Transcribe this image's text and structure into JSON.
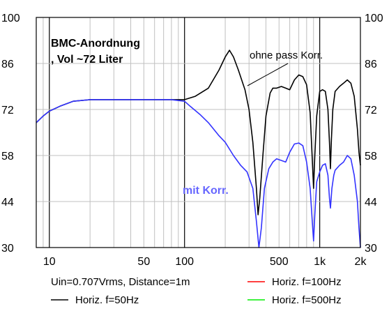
{
  "chart_data": {
    "type": "line",
    "title_lines": [
      "BMC-Anordnung",
      ", Vol ~72 Liter"
    ],
    "x_scale": "log",
    "xlim": [
      8,
      2000
    ],
    "ylim": [
      30,
      100
    ],
    "x_ticks": [
      {
        "value": 10,
        "label": "10"
      },
      {
        "value": 50,
        "label": "50"
      },
      {
        "value": 100,
        "label": "100"
      },
      {
        "value": 500,
        "label": "500"
      },
      {
        "value": 1000,
        "label": "1k"
      },
      {
        "value": 2000,
        "label": "2k"
      }
    ],
    "y_ticks": [
      {
        "value": 100,
        "label": "100"
      },
      {
        "value": 86,
        "label": "86"
      },
      {
        "value": 72,
        "label": "72"
      },
      {
        "value": 58,
        "label": "58"
      },
      {
        "value": 44,
        "label": "44"
      },
      {
        "value": 30,
        "label": "30"
      }
    ],
    "grid": true,
    "annotations": {
      "without": "ohne pass Korr.",
      "with": "mit Korr."
    },
    "info_text": "Uin=0.707Vrms, Distance=1m",
    "legend": [
      {
        "label": "Horiz. f=100Hz",
        "color": "#ff0000"
      },
      {
        "label": "Horiz. f=50Hz",
        "color": "#000000"
      },
      {
        "label": "Horiz. f=500Hz",
        "color": "#00ee00"
      }
    ],
    "series": [
      {
        "color": "#000000",
        "x": [
          8,
          9,
          10,
          12,
          15,
          20,
          30,
          50,
          80,
          100,
          120,
          150,
          180,
          200,
          215,
          230,
          250,
          280,
          300,
          320,
          340,
          350,
          360,
          380,
          400,
          430,
          450,
          480,
          520,
          560,
          600,
          650,
          700,
          750,
          800,
          850,
          880,
          900,
          920,
          950,
          1000,
          1050,
          1100,
          1150,
          1180,
          1200,
          1220,
          1250,
          1300,
          1400,
          1500,
          1600,
          1700,
          1800,
          1900,
          1950,
          2000
        ],
        "y": [
          68,
          70,
          71.5,
          73,
          74.5,
          75,
          75,
          75,
          75,
          75,
          76,
          78.5,
          84,
          88,
          90,
          88,
          84,
          78,
          72,
          62,
          48,
          40,
          45,
          58,
          70,
          77,
          78.5,
          78.5,
          79,
          78.5,
          78,
          81,
          82.5,
          82,
          79.5,
          71,
          57,
          48,
          58,
          70,
          77.5,
          78,
          77.5,
          72,
          62,
          54,
          63,
          72,
          77.5,
          79,
          80,
          81,
          80,
          76,
          66,
          59,
          55
        ]
      },
      {
        "color": "#3333ff",
        "x": [
          8,
          9,
          10,
          12,
          15,
          20,
          30,
          50,
          80,
          100,
          110,
          130,
          150,
          180,
          200,
          230,
          260,
          290,
          320,
          340,
          355,
          370,
          390,
          420,
          450,
          480,
          520,
          560,
          600,
          650,
          700,
          750,
          800,
          850,
          880,
          900,
          920,
          950,
          1000,
          1050,
          1100,
          1150,
          1180,
          1200,
          1230,
          1270,
          1300,
          1400,
          1500,
          1600,
          1700,
          1800,
          1900,
          1950,
          2000
        ],
        "y": [
          68,
          70,
          71.5,
          73,
          74.5,
          75,
          75,
          75,
          75,
          74.5,
          73,
          70.5,
          68,
          64,
          62,
          58,
          55,
          53,
          48,
          38,
          30,
          36,
          48,
          54,
          56,
          57,
          56.5,
          56,
          59,
          61.5,
          61.8,
          61,
          56,
          48,
          38,
          32,
          40,
          50,
          53,
          55,
          55.5,
          52,
          45,
          42,
          48,
          52,
          53.5,
          55,
          56,
          58,
          57,
          52,
          44,
          36,
          30
        ]
      }
    ]
  }
}
